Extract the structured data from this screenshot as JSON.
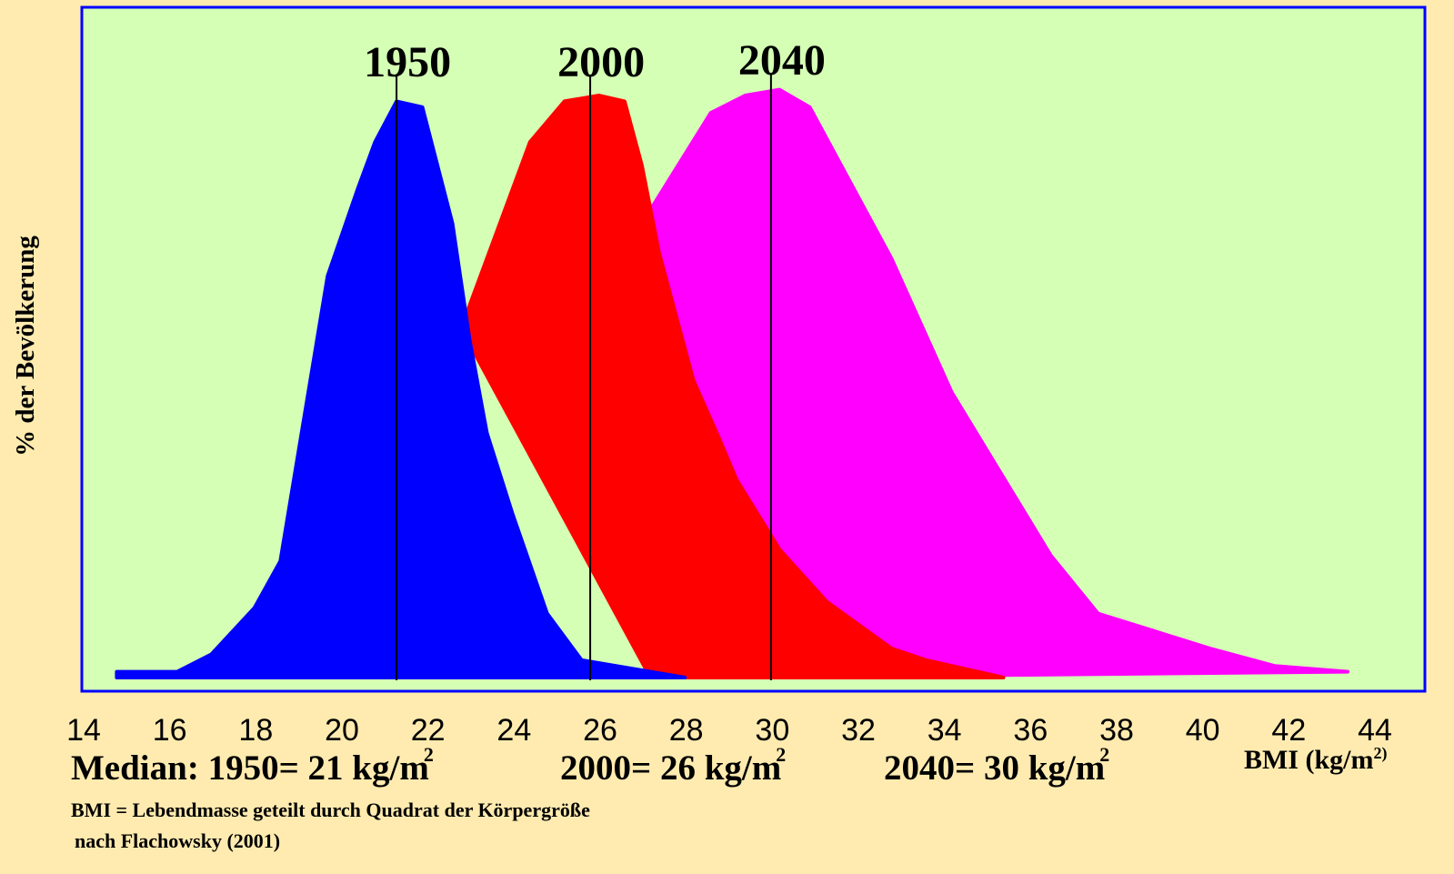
{
  "chart_data": {
    "type": "area",
    "ylabel": "% der Bevölkerung",
    "xlabel": "BMI (kg/m",
    "xlabel_sup": "2)",
    "xlim": [
      14,
      44
    ],
    "x_ticks": [
      "14",
      "16",
      "18",
      "20",
      "22",
      "24",
      "26",
      "28",
      "30",
      "32",
      "34",
      "36",
      "38",
      "40",
      "42",
      "44"
    ],
    "grid": false,
    "legend": "none",
    "series": [
      {
        "name": "2040",
        "color": "#FF00FF",
        "median_x": 29.8,
        "points": [
          [
            26.8,
            0.78
          ],
          [
            28.4,
            0.97
          ],
          [
            29.2,
            1.0
          ],
          [
            30.0,
            1.01
          ],
          [
            30.7,
            0.98
          ],
          [
            32.6,
            0.72
          ],
          [
            34.0,
            0.49
          ],
          [
            36.3,
            0.21
          ],
          [
            37.4,
            0.11
          ],
          [
            40.0,
            0.05
          ],
          [
            41.5,
            0.02
          ],
          [
            43.2,
            0.01
          ],
          [
            29.0,
            0.0
          ],
          [
            28.0,
            0.0
          ]
        ]
      },
      {
        "name": "2000",
        "color": "#FF0000",
        "median_x": 25.6,
        "points": [
          [
            22.6,
            0.6
          ],
          [
            23.0,
            0.68
          ],
          [
            24.2,
            0.92
          ],
          [
            25.0,
            0.99
          ],
          [
            25.8,
            1.0
          ],
          [
            26.4,
            0.99
          ],
          [
            26.8,
            0.88
          ],
          [
            27.2,
            0.73
          ],
          [
            28.0,
            0.51
          ],
          [
            28.6,
            0.41
          ],
          [
            29.0,
            0.34
          ],
          [
            30.0,
            0.22
          ],
          [
            31.1,
            0.13
          ],
          [
            32.6,
            0.05
          ],
          [
            33.4,
            0.03
          ],
          [
            35.2,
            0.0
          ],
          [
            27.0,
            0.0
          ]
        ]
      },
      {
        "name": "1950",
        "color": "#0000FF",
        "median_x": 21.1,
        "points": [
          [
            14.6,
            0.01
          ],
          [
            16.0,
            0.01
          ],
          [
            16.8,
            0.04
          ],
          [
            17.8,
            0.12
          ],
          [
            18.4,
            0.2
          ],
          [
            19.5,
            0.69
          ],
          [
            20.2,
            0.84
          ],
          [
            20.6,
            0.92
          ],
          [
            21.1,
            0.99
          ],
          [
            21.7,
            0.98
          ],
          [
            22.4,
            0.78
          ],
          [
            22.8,
            0.58
          ],
          [
            23.2,
            0.42
          ],
          [
            23.8,
            0.28
          ],
          [
            24.6,
            0.11
          ],
          [
            25.4,
            0.03
          ],
          [
            26.2,
            0.02
          ],
          [
            27.8,
            0.0
          ],
          [
            14.6,
            0.0
          ]
        ]
      }
    ]
  },
  "median_text": {
    "m1950": "Median: 1950= 21 kg/m",
    "m2000": "2000= 26 kg/m",
    "m2040": "2040= 30 kg/m",
    "sup": "2"
  },
  "notes": {
    "definition": "BMI = Lebendmasse geteilt durch Quadrat der Körpergröße",
    "source": "nach Flachowsky (2001)"
  },
  "colors": {
    "page_bg": "#FFEBAF",
    "plot_bg": "#D4FFB4",
    "frame": "#0000FF",
    "line": "#000000"
  }
}
